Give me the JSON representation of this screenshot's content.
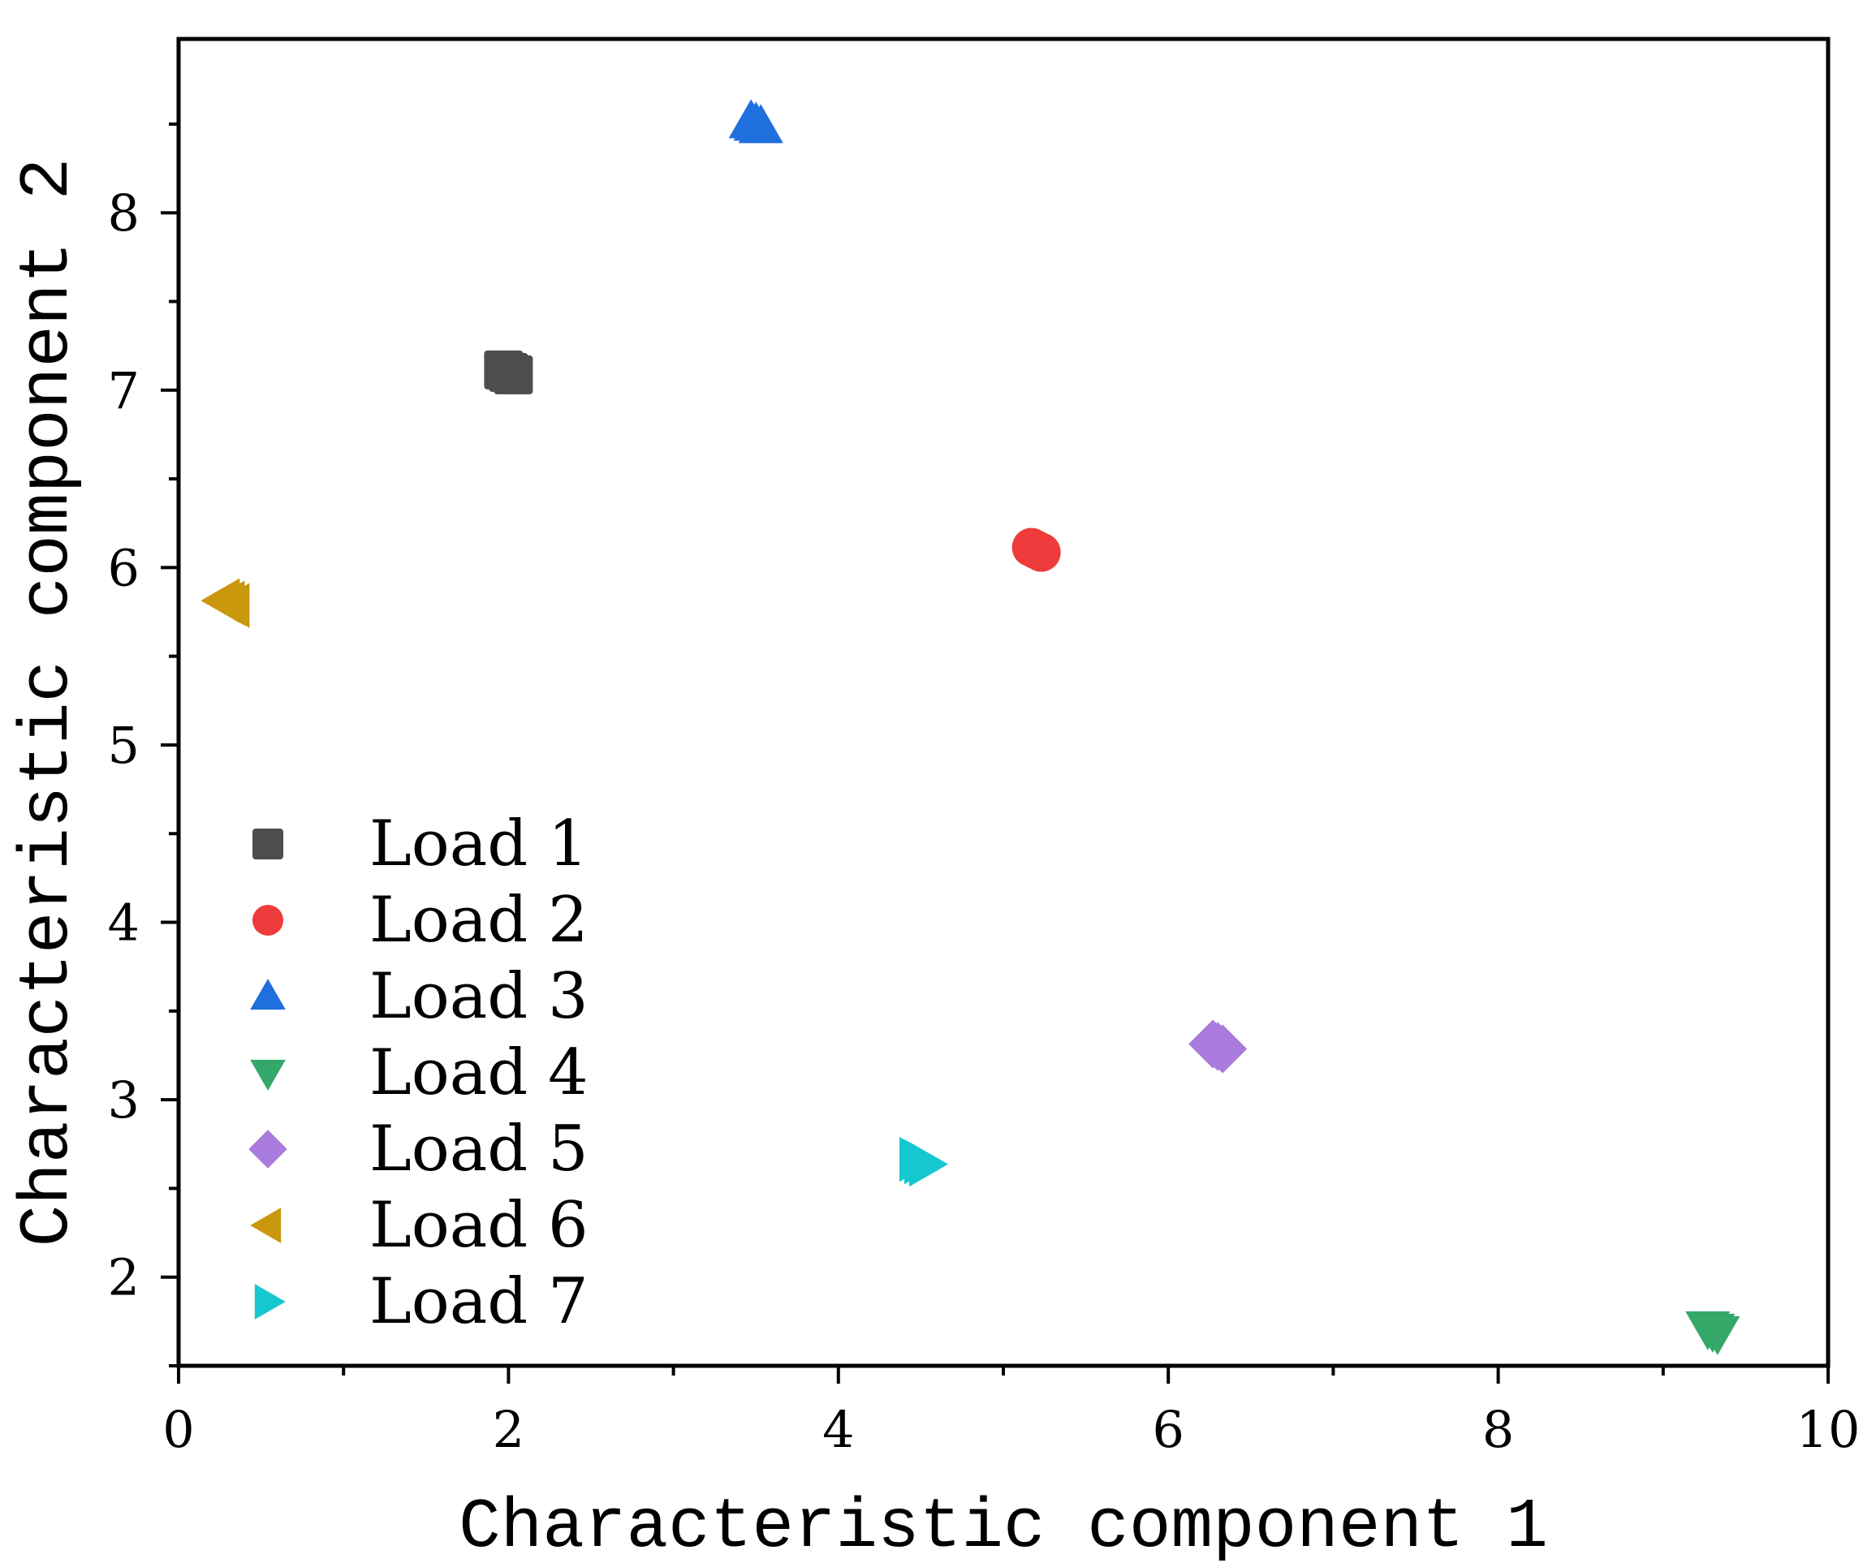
{
  "chart_data": {
    "type": "scatter",
    "xlabel": "Characteristic component 1",
    "ylabel": "Characteristic component 2",
    "xlim": [
      0,
      10
    ],
    "ylim": [
      1.5,
      8.98
    ],
    "xticks": [
      0,
      2,
      4,
      6,
      8,
      10
    ],
    "yticks": [
      2,
      3,
      4,
      5,
      6,
      7,
      8
    ],
    "grid": false,
    "legend_position": "bottom-left",
    "series": [
      {
        "name": "Load 1",
        "marker": "square",
        "color": "#4d4d4d",
        "points": [
          {
            "x": 2.0,
            "y": 7.1
          }
        ]
      },
      {
        "name": "Load 2",
        "marker": "circle",
        "color": "#ee3b3b",
        "points": [
          {
            "x": 5.2,
            "y": 6.1
          }
        ]
      },
      {
        "name": "Load 3",
        "marker": "triangle-up",
        "color": "#1f6fde",
        "points": [
          {
            "x": 3.5,
            "y": 8.5
          }
        ]
      },
      {
        "name": "Load 4",
        "marker": "triangle-down",
        "color": "#34a868",
        "points": [
          {
            "x": 9.3,
            "y": 1.7
          }
        ]
      },
      {
        "name": "Load 5",
        "marker": "diamond",
        "color": "#a97bdc",
        "points": [
          {
            "x": 6.3,
            "y": 3.3
          }
        ]
      },
      {
        "name": "Load 6",
        "marker": "triangle-left",
        "color": "#c9980c",
        "points": [
          {
            "x": 0.3,
            "y": 5.8
          }
        ]
      },
      {
        "name": "Load 7",
        "marker": "triangle-right",
        "color": "#16c7cf",
        "points": [
          {
            "x": 4.5,
            "y": 2.65
          }
        ]
      }
    ]
  }
}
